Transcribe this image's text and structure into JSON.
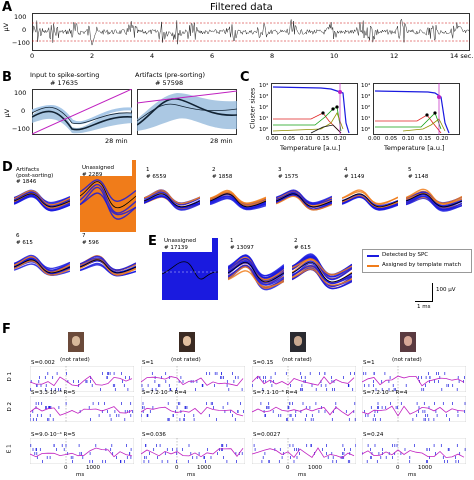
{
  "panels": {
    "A": {
      "label": "A",
      "title": "Filtered data",
      "ylabel": "μV",
      "yticks": [
        "100",
        "0",
        "−100"
      ],
      "xticks": [
        "0",
        "2",
        "4",
        "6",
        "8",
        "10",
        "12",
        "14 sec."
      ]
    },
    "B": {
      "label": "B",
      "left_title": "Input to spike-sorting",
      "left_count": "# 17635",
      "right_title": "Artifacts (pre-sorting)",
      "right_count": "# 57598",
      "ylabel": "μV",
      "yticks": [
        "100",
        "0",
        "−100"
      ],
      "xlabel_left": "28 min",
      "xlabel_right": "28 min"
    },
    "C": {
      "label": "C",
      "ylabel": "Cluster sizes",
      "yticks": [
        "10⁴",
        "10³",
        "10²",
        "10¹",
        "10⁰"
      ],
      "xticks": [
        "0.00",
        "0.05",
        "0.10",
        "0.15",
        "0.20"
      ],
      "xlabel": "Temperature [a.u.]",
      "xlabel2": "Temperature [a.u.]"
    },
    "D": {
      "label": "D",
      "clusters": [
        {
          "name": "Artifacts",
          "sub": "(post-sorting)",
          "count": "# 1846"
        },
        {
          "name": "Unassigned",
          "sub": "",
          "count": "# 2289"
        },
        {
          "name": "1",
          "sub": "",
          "count": "# 6559"
        },
        {
          "name": "2",
          "sub": "",
          "count": "# 1858"
        },
        {
          "name": "3",
          "sub": "",
          "count": "# 1575"
        },
        {
          "name": "4",
          "sub": "",
          "count": "# 1149"
        },
        {
          "name": "5",
          "sub": "",
          "count": "# 1148"
        },
        {
          "name": "6",
          "sub": "",
          "count": "# 615"
        },
        {
          "name": "7",
          "sub": "",
          "count": "# 596"
        }
      ]
    },
    "E": {
      "label": "E",
      "clusters": [
        {
          "name": "Unassigned",
          "count": "# 17139"
        },
        {
          "name": "1",
          "count": "# 13097"
        },
        {
          "name": "2",
          "count": "# 615"
        }
      ],
      "legend": {
        "spc": "Detected by SPC",
        "template": "Assigned by template match"
      },
      "scale_v": "100 μV",
      "scale_t": "1 ms"
    },
    "F": {
      "label": "F",
      "rows": [
        "D 1",
        "D 2",
        "E 1"
      ],
      "xticks": [
        "0",
        "1000"
      ],
      "xlabel": "ms",
      "not_rated": "(not rated)",
      "cells": [
        [
          "S=0.002",
          "S=1",
          "S=0.15",
          "S=1"
        ],
        [
          "S=3.3·10⁻⁸   R=5",
          "S=7.2·10⁻⁵   R=4",
          "S=7.1·10⁻⁸   R=4",
          "S=7.2·10⁻⁸   R=4"
        ],
        [
          "S=9.0·10⁻⁴   R=5",
          "S=0.036",
          "S=0.0027",
          "S=0.24"
        ]
      ]
    }
  },
  "colors": {
    "spc_blue": "#1a1adf",
    "template_orange": "#f07c1a",
    "magenta": "#c020c0",
    "mean_black": "#000000"
  }
}
